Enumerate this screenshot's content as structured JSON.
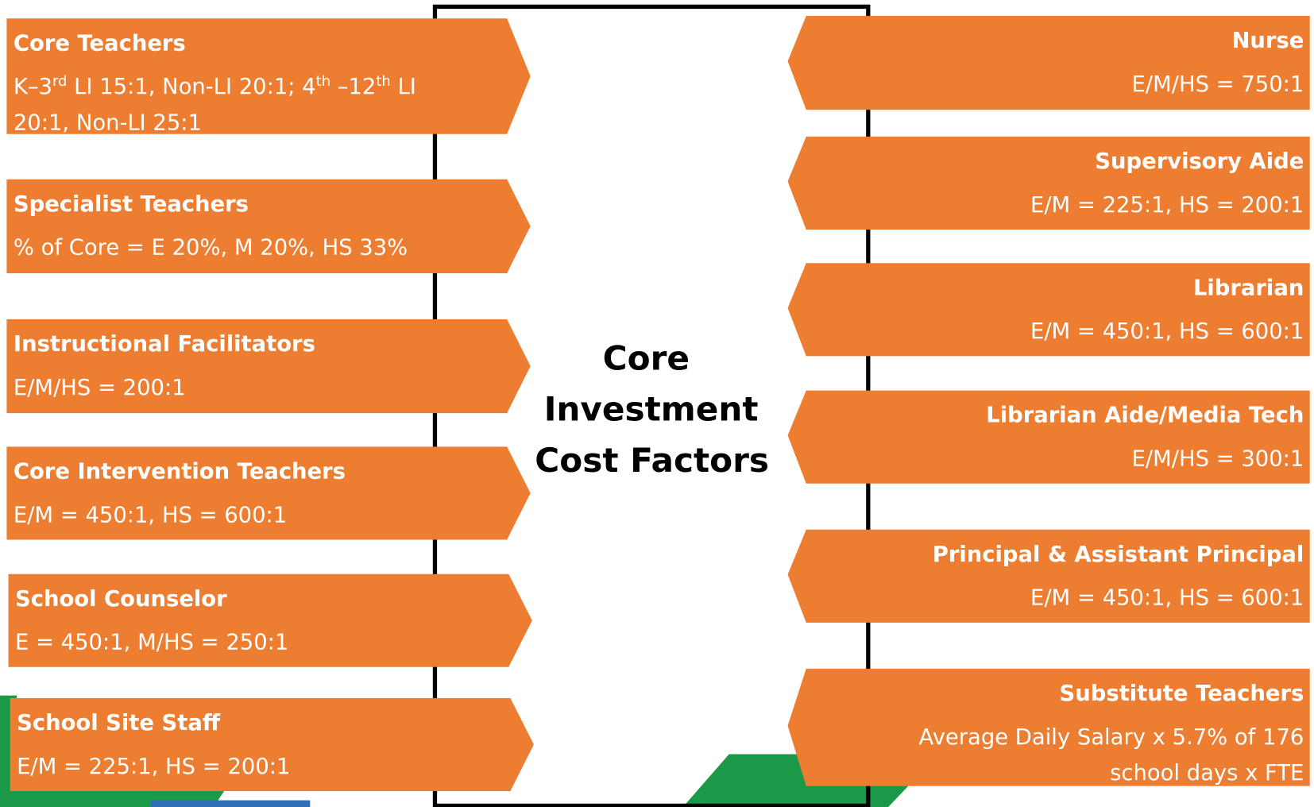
{
  "center_title_lines": [
    "Core",
    "Investment",
    "Cost Factors"
  ],
  "left_items": [
    {
      "title": "Core Teachers",
      "description": [
        [
          {
            "text": "K–3"
          },
          {
            "text": "rd",
            "sup": true
          },
          {
            "text": "  LI 15:1, Non-LI 20:1; 4"
          },
          {
            "text": "th",
            "sup": true
          },
          {
            "text": " –12"
          },
          {
            "text": "th",
            "sup": true
          },
          {
            "text": "  LI"
          }
        ],
        "20:1, Non-LI 25:1"
      ]
    },
    {
      "title": "Specialist Teachers",
      "description": [
        "% of Core = E 20%, M 20%, HS 33%"
      ]
    },
    {
      "title": "Instructional Facilitators",
      "description": [
        "E/M/HS = 200:1"
      ]
    },
    {
      "title": "Core Intervention Teachers",
      "description": [
        "E/M = 450:1, HS = 600:1"
      ]
    },
    {
      "title": "School Counselor",
      "description": [
        "E = 450:1, M/HS = 250:1"
      ]
    },
    {
      "title": "School Site Staff",
      "description": [
        "E/M = 225:1, HS = 200:1"
      ]
    }
  ],
  "right_items": [
    {
      "title": "Nurse",
      "description": [
        "E/M/HS = 750:1"
      ]
    },
    {
      "title": "Supervisory Aide",
      "description": [
        "E/M = 225:1, HS = 200:1"
      ]
    },
    {
      "title": "Librarian",
      "description": [
        "E/M = 450:1, HS = 600:1"
      ]
    },
    {
      "title": "Librarian Aide/Media Tech",
      "description": [
        "E/M/HS = 300:1"
      ]
    },
    {
      "title": "Principal & Assistant Principal",
      "description": [
        "E/M = 450:1, HS = 600:1"
      ]
    },
    {
      "title": "Substitute Teachers",
      "description": [
        "Average Daily Salary x 5.7% of 176",
        "school days  x FTE"
      ]
    }
  ]
}
